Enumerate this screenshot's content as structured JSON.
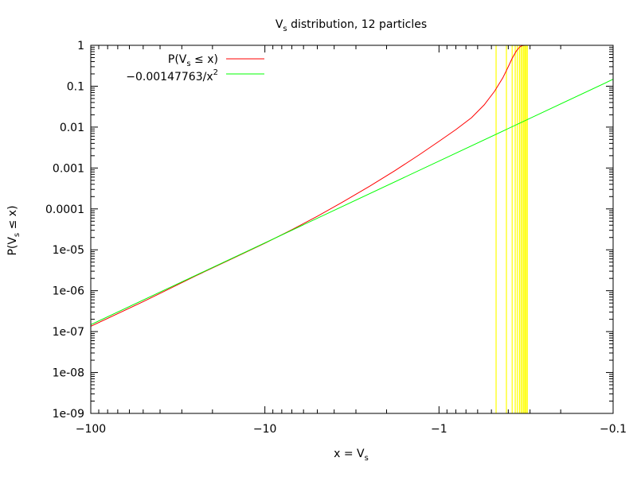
{
  "chart_data": {
    "type": "line",
    "title": "V_s distribution, 12 particles",
    "title_parts": {
      "main": "V",
      "sub": "s",
      "rest": " distribution, 12 particles"
    },
    "xlabel": "x = V_s",
    "xlabel_parts": {
      "main": "x = V",
      "sub": "s"
    },
    "ylabel": "P(V_s ≤ x)",
    "ylabel_parts": {
      "pre": "P(V",
      "sub": "s",
      "post": " ≤ x)"
    },
    "x_scale": "log (negative axis, values shown as -|x|)",
    "y_scale": "log",
    "xlim": [
      -100,
      -0.1
    ],
    "ylim": [
      1e-09,
      1
    ],
    "x_ticks": [
      {
        "value": -100,
        "label": "−100"
      },
      {
        "value": -10,
        "label": "−10"
      },
      {
        "value": -1,
        "label": "−1"
      },
      {
        "value": -0.1,
        "label": "−0.1"
      }
    ],
    "y_ticks": [
      {
        "value": 1,
        "label": "1"
      },
      {
        "value": 0.1,
        "label": "0.1"
      },
      {
        "value": 0.01,
        "label": "0.01"
      },
      {
        "value": 0.001,
        "label": "0.001"
      },
      {
        "value": 0.0001,
        "label": "0.0001"
      },
      {
        "value": 1e-05,
        "label": "1e-05"
      },
      {
        "value": 1e-06,
        "label": "1e-06"
      },
      {
        "value": 1e-07,
        "label": "1e-07"
      },
      {
        "value": 1e-08,
        "label": "1e-08"
      },
      {
        "value": 1e-09,
        "label": "1e-09"
      }
    ],
    "grid": false,
    "legend_position": "top-left",
    "series": [
      {
        "name": "P(V_s ≤ x)",
        "legend_parts": {
          "pre": "P(V",
          "sub": "s",
          "post": " ≤ x)"
        },
        "color": "#ff0000",
        "x": [
          -100,
          -50,
          -25,
          -15,
          -10,
          -7,
          -5,
          -3.5,
          -2.5,
          -1.8,
          -1.3,
          -1.0,
          -0.8,
          -0.65,
          -0.55,
          -0.48,
          -0.43,
          -0.4,
          -0.38,
          -0.36,
          -0.345,
          -0.335,
          -0.33,
          -0.32
        ],
        "y": [
          1.35e-07,
          5.4e-07,
          2.3e-06,
          6.4e-06,
          1.45e-05,
          3.1e-05,
          6.6e-05,
          0.000155,
          0.00036,
          0.00085,
          0.0021,
          0.0045,
          0.0087,
          0.017,
          0.035,
          0.075,
          0.16,
          0.3,
          0.48,
          0.72,
          0.9,
          0.97,
          0.99,
          1.0
        ]
      },
      {
        "name": "−0.00147763/x^2",
        "legend_parts": {
          "pre": "−0.00147763/x",
          "sup": "2"
        },
        "color": "#00ff00",
        "x": [
          -100,
          -0.1
        ],
        "y": [
          1.47763e-07,
          0.147763
        ]
      }
    ],
    "particle_markers": {
      "description": "vertical lines marking the 12 particle values of V_s",
      "color": "#ffff00",
      "x": [
        -0.47,
        -0.41,
        -0.38,
        -0.365,
        -0.355,
        -0.345,
        -0.338,
        -0.332,
        -0.326,
        -0.321,
        -0.316,
        -0.311
      ]
    }
  }
}
